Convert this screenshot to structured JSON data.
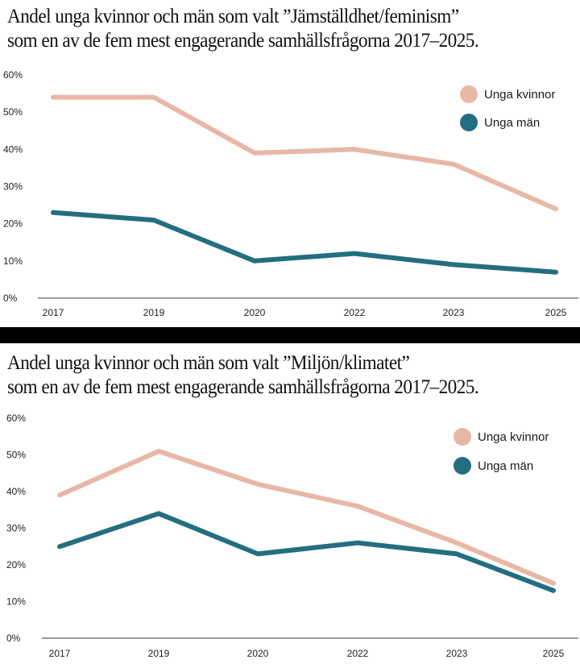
{
  "colors": {
    "women": "#e8b8a6",
    "men": "#236e80",
    "axis": "#9a9a9a",
    "separator": "#000000"
  },
  "chart_data": [
    {
      "type": "line",
      "title_lines": [
        "Andel unga kvinnor och män som valt ”Jämställdhet/feminism”",
        "som en av de fem mest engagerande samhällsfrågorna 2017–2025."
      ],
      "categories": [
        "2017",
        "2019",
        "2020",
        "2022",
        "2023",
        "2025"
      ],
      "series": [
        {
          "name": "Unga kvinnor",
          "color": "#e8b8a6",
          "values": [
            54,
            54,
            39,
            40,
            36,
            24
          ]
        },
        {
          "name": "Unga män",
          "color": "#236e80",
          "values": [
            23,
            21,
            10,
            12,
            9,
            7
          ]
        }
      ],
      "yticks": [
        "0%",
        "10%",
        "20%",
        "30%",
        "40%",
        "50%",
        "60%"
      ],
      "ylim": [
        0,
        60
      ],
      "xlabel": "",
      "ylabel": "",
      "grid": false,
      "legend": "top-right"
    },
    {
      "type": "line",
      "title_lines": [
        "Andel unga kvinnor och män som valt ”Miljön/klimatet”",
        "som en av de fem mest engagerande samhällsfrågorna 2017–2025."
      ],
      "categories": [
        "2017",
        "2019",
        "2020",
        "2022",
        "2023",
        "2025"
      ],
      "series": [
        {
          "name": "Unga kvinnor",
          "color": "#e8b8a6",
          "values": [
            39,
            51,
            42,
            36,
            26,
            15
          ]
        },
        {
          "name": "Unga män",
          "color": "#236e80",
          "values": [
            25,
            34,
            23,
            26,
            23,
            13
          ]
        }
      ],
      "yticks": [
        "0%",
        "10%",
        "20%",
        "30%",
        "40%",
        "50%",
        "60%"
      ],
      "ylim": [
        0,
        60
      ],
      "xlabel": "",
      "ylabel": "",
      "grid": false,
      "legend": "top-right"
    }
  ]
}
